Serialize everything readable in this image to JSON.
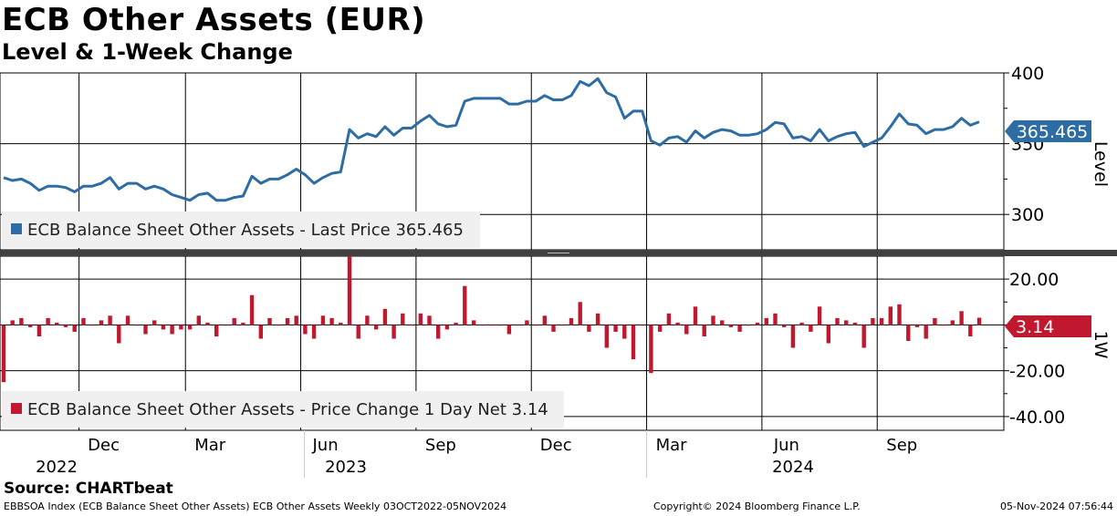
{
  "title": "ECB Other Assets (EUR)",
  "subtitle": "Level & 1-Week Change",
  "source": "Source: CHARTbeat",
  "footer": {
    "left": "EBBSOA Index (ECB Balance Sheet Other Assets) ECB Other Assets  Weekly 03OCT2022-05NOV2024",
    "center": "Copyright© 2024 Bloomberg Finance L.P.",
    "right": "05-Nov-2024 07:56:44"
  },
  "colors": {
    "level": "#2e6ca4",
    "change": "#c0182e",
    "grid": "#000000"
  },
  "chart_data": [
    {
      "type": "line",
      "panel": "top",
      "axis_label": "Level",
      "ylim": [
        275,
        400
      ],
      "yticks": [
        "400",
        "350",
        "300"
      ],
      "ytick_values": [
        400,
        350,
        300
      ],
      "x_start": "2022-10-03",
      "frequency": "weekly",
      "legend": "ECB Balance Sheet Other Assets - Last Price 365.465",
      "last_value_label": "365.465",
      "values": [
        326,
        324,
        325,
        322,
        317,
        320,
        320,
        319,
        316,
        320,
        320,
        322,
        326,
        318,
        322,
        322,
        318,
        320,
        318,
        314,
        312,
        310,
        314,
        315,
        310,
        310,
        312,
        313,
        327,
        322,
        325,
        325,
        328,
        332,
        328,
        322,
        326,
        329,
        330,
        360,
        354,
        357,
        355,
        362,
        356,
        361,
        361,
        366,
        370,
        364,
        362,
        363,
        380,
        382,
        382,
        382,
        382,
        378,
        378,
        380,
        380,
        384,
        381,
        381,
        384,
        394,
        391,
        396,
        386,
        383,
        368,
        373,
        373,
        352,
        349,
        354,
        355,
        351,
        359,
        354,
        358,
        360,
        359,
        356,
        356,
        357,
        360,
        365,
        364,
        354,
        355,
        352,
        360,
        352,
        355,
        357,
        358,
        348,
        351,
        354,
        362,
        371,
        364,
        363,
        357,
        360,
        360,
        362,
        368,
        363,
        365.465
      ]
    },
    {
      "type": "bar",
      "panel": "bottom",
      "axis_label": "1W",
      "ylim": [
        -46,
        30
      ],
      "yticks": [
        "20.00",
        "0.00",
        "-20.00",
        "-40.00"
      ],
      "ytick_values": [
        20,
        0,
        -20,
        -40
      ],
      "legend": "ECB Balance Sheet Other Assets - Price Change 1 Day Net 3.14",
      "last_value_label": "3.14",
      "values": [
        -25,
        2,
        3,
        -1,
        -5,
        3,
        1,
        -1,
        -3,
        3,
        0,
        2,
        4,
        -8,
        4,
        0,
        -4,
        2,
        -2,
        -4,
        -2,
        -2,
        4,
        1,
        -5,
        0,
        3,
        1,
        13,
        -6,
        3,
        0,
        3,
        4,
        -4,
        -6,
        4,
        3,
        1,
        30,
        -6,
        4,
        -2,
        7,
        -6,
        5,
        0,
        5,
        4,
        -6,
        -2,
        1,
        17,
        2,
        0,
        0,
        0,
        -4,
        0,
        2,
        0,
        4,
        -3,
        0,
        3,
        10,
        -3,
        5,
        -10,
        -3,
        -6,
        -15,
        0,
        -21,
        -3,
        5,
        1,
        -4,
        8,
        -5,
        4,
        2,
        -1,
        -3,
        0,
        1,
        3,
        5,
        -1,
        -10,
        1,
        -3,
        8,
        -8,
        3,
        2,
        1,
        -10,
        3,
        3,
        8,
        9,
        -7,
        -1,
        -6,
        3,
        0,
        2,
        6,
        -5,
        3.14
      ]
    }
  ],
  "xaxis": {
    "month_ticks": [
      "Dec",
      "Mar",
      "Jun",
      "Sep",
      "Dec",
      "Mar",
      "Jun",
      "Sep"
    ],
    "years": [
      "2022",
      "2023",
      "2024"
    ]
  }
}
